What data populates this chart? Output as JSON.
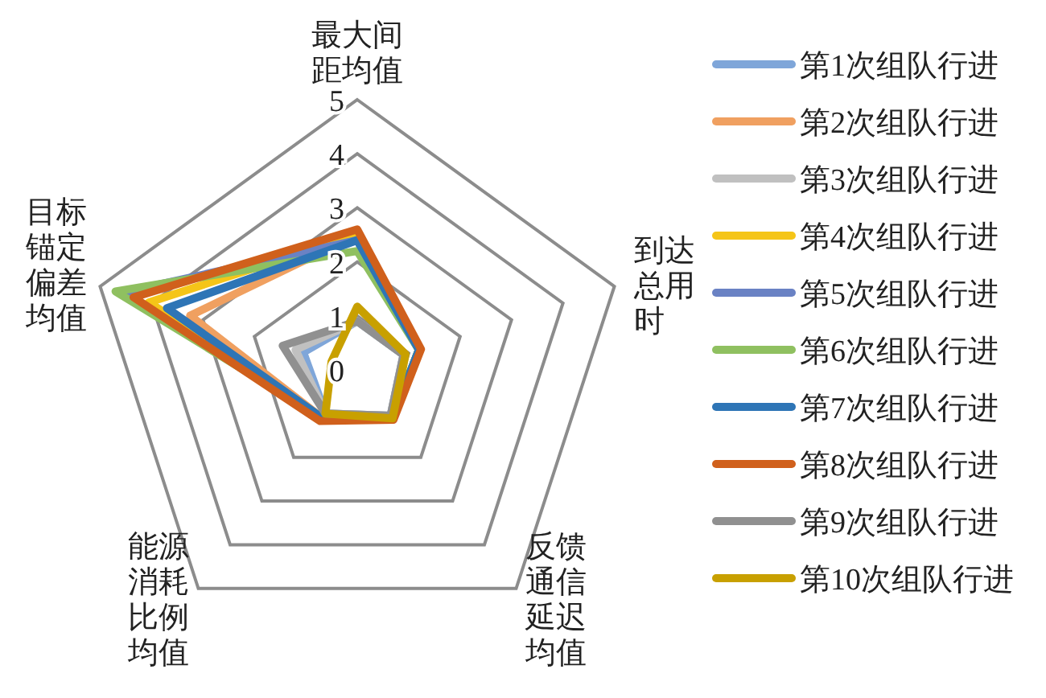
{
  "chart_data": {
    "type": "radar",
    "categories": [
      "最大间距均值",
      "到达总用时",
      "反馈通信延迟均值",
      "能源消耗比例均值",
      "目标锚定偏差均值"
    ],
    "ylim": [
      0,
      5
    ],
    "yticks": [
      0,
      1,
      2,
      3,
      4,
      5
    ],
    "grid": true,
    "legend": "right",
    "series": [
      {
        "name": "第1次组队行进",
        "color": "#7fa6d9",
        "values": [
          0.9,
          0.9,
          1.05,
          1.0,
          1.05
        ]
      },
      {
        "name": "第2次组队行进",
        "color": "#f0a060",
        "values": [
          2.5,
          1.2,
          1.1,
          1.1,
          3.25
        ]
      },
      {
        "name": "第3次组队行进",
        "color": "#c0c0c0",
        "values": [
          0.9,
          0.9,
          1.05,
          1.0,
          1.2
        ]
      },
      {
        "name": "第4次组队行进",
        "color": "#f5c518",
        "values": [
          2.5,
          1.2,
          1.1,
          1.1,
          4.05
        ]
      },
      {
        "name": "第5次组队行进",
        "color": "#6a82c4",
        "values": [
          2.4,
          1.2,
          1.1,
          1.1,
          4.6
        ]
      },
      {
        "name": "第6次组队行进",
        "color": "#8fc060",
        "values": [
          2.2,
          1.2,
          1.1,
          1.1,
          4.7
        ]
      },
      {
        "name": "第7次组队行进",
        "color": "#2e75b6",
        "values": [
          2.4,
          1.2,
          1.1,
          1.1,
          3.7
        ]
      },
      {
        "name": "第8次组队行进",
        "color": "#d0601c",
        "values": [
          2.6,
          1.24,
          1.14,
          1.17,
          4.35
        ]
      },
      {
        "name": "第9次组队行进",
        "color": "#909090",
        "values": [
          0.9,
          0.9,
          1.05,
          1.0,
          1.45
        ]
      },
      {
        "name": "第10次组队行进",
        "color": "#c8a000",
        "values": [
          1.17,
          0.94,
          1.11,
          1.0,
          0.5
        ]
      }
    ]
  }
}
